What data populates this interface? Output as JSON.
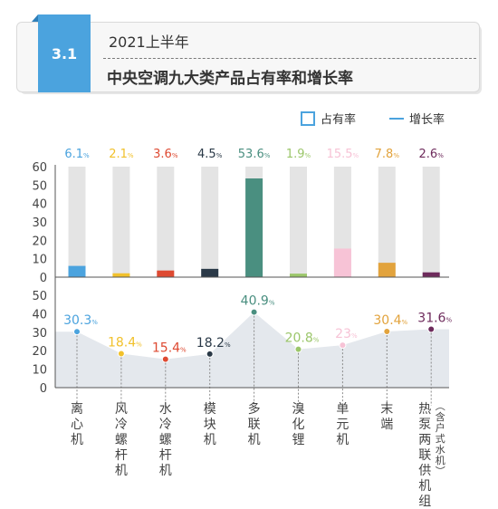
{
  "header": {
    "section_number": "3.1",
    "subtitle": "2021上半年",
    "title": "中央空调九大类产品占有率和增长率"
  },
  "legend": {
    "share_label": "占有率",
    "growth_label": "增长率"
  },
  "colors": {
    "accent": "#4ba3de",
    "background_bar": "#e4e4e4",
    "area_fill": "#e4e8ed"
  },
  "chart_data": {
    "type": "bar+line",
    "categories": [
      "离心机",
      "风冷螺杆机",
      "水冷螺杆机",
      "模块机",
      "多联机",
      "溴化锂",
      "单元机",
      "末端",
      "热泵两联供机组（含户式水机）"
    ],
    "category_labels": [
      "离心机",
      "风冷螺杆机",
      "水冷螺杆机",
      "模块机",
      "多联机",
      "溴化锂",
      "单元机",
      "末端",
      "热泵两联供机组(含户式水机)"
    ],
    "category_colors": [
      "#4ba3de",
      "#f1c12c",
      "#de4a32",
      "#2a3947",
      "#4a8f80",
      "#9bc66a",
      "#f7c3d6",
      "#e2a33d",
      "#6e2b5c"
    ],
    "series": [
      {
        "name": "占有率",
        "unit": "%",
        "values": [
          6.1,
          2.1,
          3.6,
          4.5,
          53.6,
          1.9,
          15.5,
          7.8,
          2.6
        ]
      },
      {
        "name": "增长率",
        "unit": "%",
        "values": [
          30.3,
          18.4,
          15.4,
          18.2,
          40.9,
          20.8,
          23.0,
          30.4,
          31.6
        ]
      }
    ],
    "share_axis": {
      "ylim": [
        0,
        60
      ],
      "ticks": [
        0,
        10,
        20,
        30,
        40,
        50,
        60
      ]
    },
    "growth_axis": {
      "ylim": [
        0,
        50
      ],
      "ticks": [
        0,
        10,
        20,
        30,
        40,
        50
      ]
    },
    "legend": {
      "placement": "top-right"
    },
    "grid": false
  }
}
